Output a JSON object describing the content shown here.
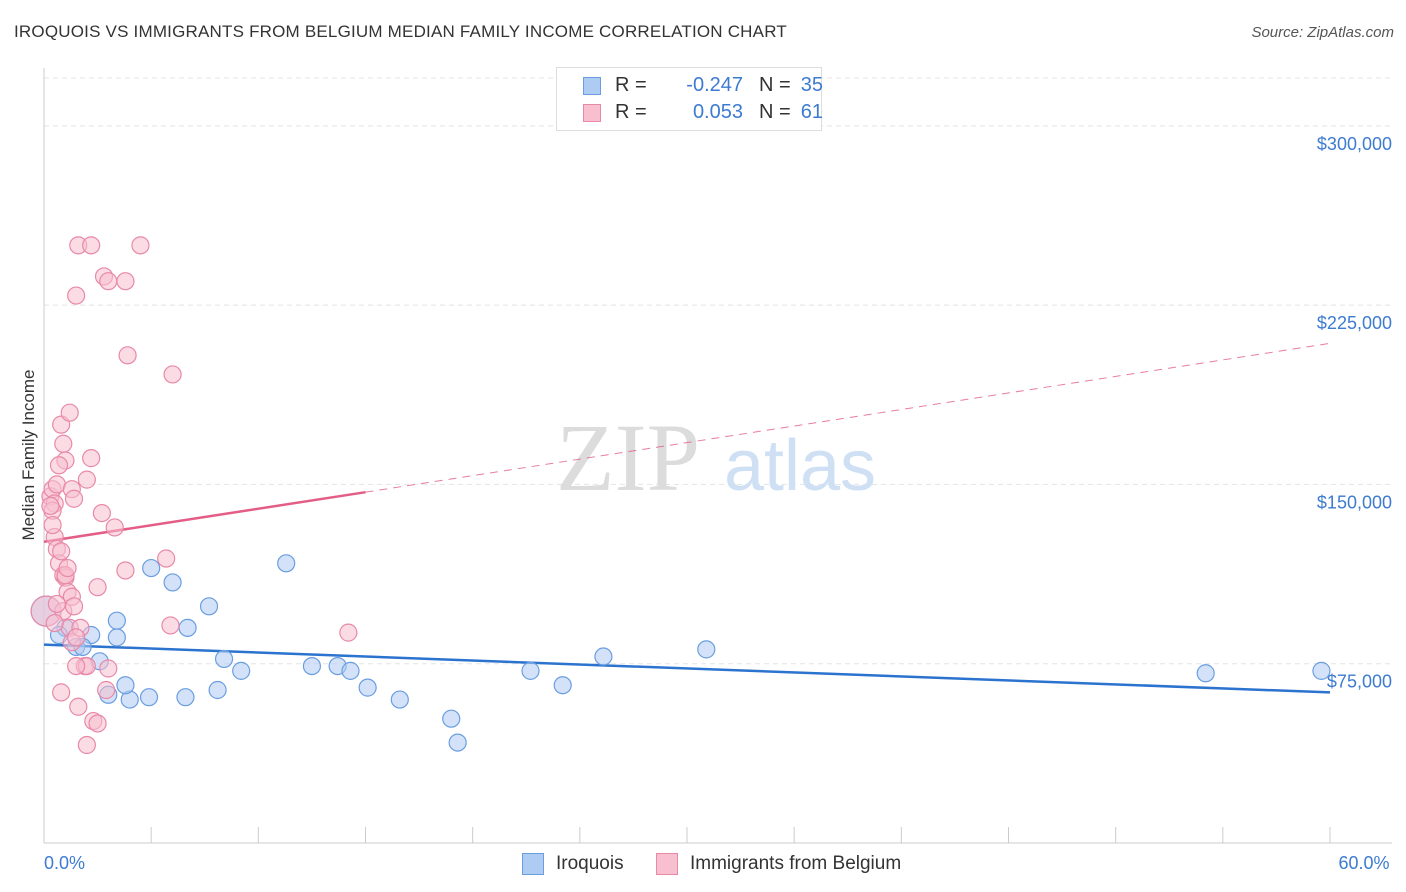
{
  "title": "IROQUOIS VS IMMIGRANTS FROM BELGIUM MEDIAN FAMILY INCOME CORRELATION CHART",
  "source": "Source: ZipAtlas.com",
  "watermark": {
    "zip": "ZIP",
    "atlas": "atlas"
  },
  "legend_top": [
    {
      "r_label": "R =",
      "r_value": "-0.247",
      "n_label": "N =",
      "n_value": "35",
      "color": "#aecbf2",
      "border": "#6a9ee0"
    },
    {
      "r_label": "R =",
      "r_value": "0.053",
      "n_label": "N =",
      "n_value": "61",
      "color": "#f7bfd0",
      "border": "#e889a8"
    }
  ],
  "legend_bottom": [
    {
      "label": "Iroquois",
      "color": "#aecbf2",
      "border": "#6a9ee0"
    },
    {
      "label": "Immigrants from Belgium",
      "color": "#f7bfd0",
      "border": "#e889a8"
    }
  ],
  "chart_data": {
    "type": "scatter",
    "title": "IROQUOIS VS IMMIGRANTS FROM BELGIUM MEDIAN FAMILY INCOME CORRELATION CHART",
    "xlabel": "",
    "ylabel": "Median Family Income",
    "xlim": [
      0,
      60
    ],
    "ylim": [
      0,
      320000
    ],
    "x_tick_labels": [
      {
        "value": 0,
        "label": "0.0%"
      },
      {
        "value": 60,
        "label": "60.0%"
      }
    ],
    "y_tick_labels": [
      {
        "value": 75000,
        "label": "$75,000"
      },
      {
        "value": 150000,
        "label": "$150,000"
      },
      {
        "value": 225000,
        "label": "$225,000"
      },
      {
        "value": 300000,
        "label": "$300,000"
      }
    ],
    "grid": true,
    "series": [
      {
        "name": "Iroquois",
        "color": "#6a9ee0",
        "fill": "#aecbf2",
        "trend_color": "#2b73cf",
        "trend": {
          "x": [
            0,
            60
          ],
          "y": [
            83000,
            63000
          ],
          "dashed_from": null
        },
        "points": [
          {
            "x": 0.1,
            "y": 97000,
            "big": true
          },
          {
            "x": 1.0,
            "y": 90000
          },
          {
            "x": 0.7,
            "y": 87000
          },
          {
            "x": 1.5,
            "y": 82000
          },
          {
            "x": 2.2,
            "y": 87000
          },
          {
            "x": 1.8,
            "y": 82000
          },
          {
            "x": 3.4,
            "y": 86000
          },
          {
            "x": 3.4,
            "y": 93000
          },
          {
            "x": 3.0,
            "y": 62000
          },
          {
            "x": 4.0,
            "y": 60000
          },
          {
            "x": 4.9,
            "y": 61000
          },
          {
            "x": 5.0,
            "y": 115000
          },
          {
            "x": 6.7,
            "y": 90000
          },
          {
            "x": 6.6,
            "y": 61000
          },
          {
            "x": 6.0,
            "y": 109000
          },
          {
            "x": 7.7,
            "y": 99000
          },
          {
            "x": 8.1,
            "y": 64000
          },
          {
            "x": 8.4,
            "y": 77000
          },
          {
            "x": 9.2,
            "y": 72000
          },
          {
            "x": 11.3,
            "y": 117000
          },
          {
            "x": 12.5,
            "y": 74000
          },
          {
            "x": 13.7,
            "y": 74000
          },
          {
            "x": 14.3,
            "y": 72000
          },
          {
            "x": 15.1,
            "y": 65000
          },
          {
            "x": 16.6,
            "y": 60000
          },
          {
            "x": 19.0,
            "y": 52000
          },
          {
            "x": 19.3,
            "y": 42000
          },
          {
            "x": 22.7,
            "y": 72000
          },
          {
            "x": 24.2,
            "y": 66000
          },
          {
            "x": 26.1,
            "y": 78000
          },
          {
            "x": 30.9,
            "y": 81000
          },
          {
            "x": 54.2,
            "y": 71000
          },
          {
            "x": 59.6,
            "y": 72000
          },
          {
            "x": 2.6,
            "y": 76000
          },
          {
            "x": 3.8,
            "y": 66000
          }
        ]
      },
      {
        "name": "Immigrants from Belgium",
        "color": "#e889a8",
        "fill": "#f7bfd0",
        "trend_color": "#e35d87",
        "trend": {
          "x": [
            0,
            60
          ],
          "y": [
            126000,
            209000
          ],
          "solid_until": 15.0
        },
        "points": [
          {
            "x": 0.1,
            "y": 97000,
            "big": true
          },
          {
            "x": 0.3,
            "y": 145000
          },
          {
            "x": 0.4,
            "y": 148000
          },
          {
            "x": 0.5,
            "y": 142000
          },
          {
            "x": 0.6,
            "y": 150000
          },
          {
            "x": 0.4,
            "y": 139000
          },
          {
            "x": 0.5,
            "y": 128000
          },
          {
            "x": 0.6,
            "y": 123000
          },
          {
            "x": 0.7,
            "y": 117000
          },
          {
            "x": 0.8,
            "y": 122000
          },
          {
            "x": 0.9,
            "y": 112000
          },
          {
            "x": 1.0,
            "y": 111000
          },
          {
            "x": 1.1,
            "y": 105000
          },
          {
            "x": 0.9,
            "y": 97000
          },
          {
            "x": 1.3,
            "y": 103000
          },
          {
            "x": 1.2,
            "y": 90000
          },
          {
            "x": 1.3,
            "y": 84000
          },
          {
            "x": 0.8,
            "y": 175000
          },
          {
            "x": 0.9,
            "y": 167000
          },
          {
            "x": 1.0,
            "y": 160000
          },
          {
            "x": 1.2,
            "y": 180000
          },
          {
            "x": 0.7,
            "y": 158000
          },
          {
            "x": 1.3,
            "y": 148000
          },
          {
            "x": 1.4,
            "y": 144000
          },
          {
            "x": 2.0,
            "y": 152000
          },
          {
            "x": 2.2,
            "y": 161000
          },
          {
            "x": 2.5,
            "y": 107000
          },
          {
            "x": 2.7,
            "y": 138000
          },
          {
            "x": 3.3,
            "y": 132000
          },
          {
            "x": 3.8,
            "y": 114000
          },
          {
            "x": 1.7,
            "y": 90000
          },
          {
            "x": 1.9,
            "y": 74000
          },
          {
            "x": 2.0,
            "y": 74000
          },
          {
            "x": 1.5,
            "y": 74000
          },
          {
            "x": 0.8,
            "y": 63000
          },
          {
            "x": 1.6,
            "y": 57000
          },
          {
            "x": 2.3,
            "y": 51000
          },
          {
            "x": 2.0,
            "y": 41000
          },
          {
            "x": 2.5,
            "y": 50000
          },
          {
            "x": 2.9,
            "y": 64000
          },
          {
            "x": 3.0,
            "y": 73000
          },
          {
            "x": 1.6,
            "y": 250000
          },
          {
            "x": 2.2,
            "y": 250000
          },
          {
            "x": 4.5,
            "y": 250000
          },
          {
            "x": 2.8,
            "y": 237000
          },
          {
            "x": 3.0,
            "y": 235000
          },
          {
            "x": 3.8,
            "y": 235000
          },
          {
            "x": 1.5,
            "y": 229000
          },
          {
            "x": 3.9,
            "y": 204000
          },
          {
            "x": 6.0,
            "y": 196000
          },
          {
            "x": 5.7,
            "y": 119000
          },
          {
            "x": 5.9,
            "y": 91000
          },
          {
            "x": 14.2,
            "y": 88000
          },
          {
            "x": 0.3,
            "y": 141000
          },
          {
            "x": 0.4,
            "y": 133000
          },
          {
            "x": 1.0,
            "y": 112000
          },
          {
            "x": 0.6,
            "y": 100000
          },
          {
            "x": 1.1,
            "y": 115000
          },
          {
            "x": 1.5,
            "y": 86000
          },
          {
            "x": 0.5,
            "y": 92000
          },
          {
            "x": 1.4,
            "y": 99000
          }
        ]
      }
    ]
  }
}
